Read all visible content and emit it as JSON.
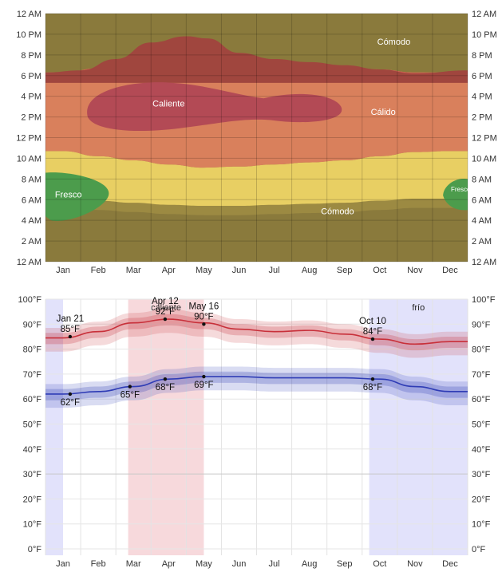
{
  "months": [
    "Jan",
    "Feb",
    "Mar",
    "Apr",
    "May",
    "Jun",
    "Jul",
    "Aug",
    "Sep",
    "Oct",
    "Nov",
    "Dec"
  ],
  "colors": {
    "comodo": "#8a7a3c",
    "calido": "#d9805c",
    "caliente": "#b34a55",
    "fresco": "#4c9c4c",
    "templado": "#e8cf63",
    "high": "#c8303a",
    "low": "#2f3cb5",
    "hot_season": "#f7d9dc",
    "cold_season": "#e2e2fb"
  },
  "chart_data": [
    {
      "type": "heatmap",
      "title": "",
      "y_tick_labels": [
        "12 AM",
        "2 AM",
        "4 AM",
        "6 AM",
        "8 AM",
        "10 AM",
        "12 PM",
        "2 PM",
        "4 PM",
        "6 PM",
        "8 PM",
        "10 PM",
        "12 AM"
      ],
      "x_tick_labels": [
        "Jan",
        "Feb",
        "Mar",
        "Apr",
        "May",
        "Jun",
        "Jul",
        "Aug",
        "Sep",
        "Oct",
        "Nov",
        "Dec"
      ],
      "bands": [
        {
          "name": "Cómodo",
          "color": "comodo"
        },
        {
          "name": "Cálido",
          "color": "calido"
        },
        {
          "name": "Caliente",
          "color": "caliente"
        },
        {
          "name": "Fresco",
          "color": "fresco"
        },
        {
          "name": "Cómodo",
          "color": "comodo"
        },
        {
          "name": "Fresco",
          "color": "fresco"
        }
      ],
      "boundaries_hours": {
        "month_x": [
          0.5,
          1.5,
          2.5,
          3.5,
          4.5,
          5.5,
          6.5,
          7.5,
          8.5,
          9.5,
          10.5,
          11.5
        ],
        "evening_top_of_hot": [
          18.3,
          18.7,
          19.6,
          20.5,
          20.2,
          19.4,
          19.1,
          18.9,
          18.8,
          18.6,
          18.3,
          18.3
        ],
        "warm_bottom": [
          10.7,
          10.2,
          9.8,
          9.4,
          9.1,
          9.2,
          9.4,
          9.6,
          9.8,
          10.2,
          10.6,
          10.7
        ],
        "mild_bottom": [
          5.2,
          5.0,
          4.8,
          4.6,
          4.5,
          4.5,
          4.6,
          4.7,
          4.8,
          5.0,
          5.2,
          5.2
        ]
      }
    },
    {
      "type": "line",
      "title": "",
      "x": [
        "Jan",
        "Feb",
        "Mar",
        "Apr",
        "May",
        "Jun",
        "Jul",
        "Aug",
        "Sep",
        "Oct",
        "Nov",
        "Dec"
      ],
      "y_tick_labels": [
        "0°F",
        "10°F",
        "20°F",
        "30°F",
        "40°F",
        "50°F",
        "60°F",
        "70°F",
        "80°F",
        "90°F",
        "100°F"
      ],
      "ylim": [
        0,
        100
      ],
      "season_labels": {
        "hot": "caliente",
        "cold": "frío"
      },
      "series": [
        {
          "key": "high",
          "values": [
            84.5,
            87,
            90.5,
            92,
            90.5,
            88,
            87,
            87.5,
            86,
            84,
            82,
            83
          ]
        },
        {
          "key": "low",
          "values": [
            62,
            63,
            65,
            68,
            69,
            69,
            68.5,
            68.5,
            68.5,
            68,
            65,
            63
          ]
        }
      ],
      "annotations": [
        {
          "date": "Jan 21",
          "value_label": "85°F",
          "month": 0.7,
          "value": 85
        },
        {
          "date": "Apr 12",
          "value_label": "92°F",
          "month": 3.4,
          "value": 92
        },
        {
          "date": "May 16",
          "value_label": "90°F",
          "month": 4.5,
          "value": 90
        },
        {
          "date": "Oct 10",
          "value_label": "84°F",
          "month": 9.3,
          "value": 84
        },
        {
          "date": "",
          "value_label": "62°F",
          "month": 0.7,
          "value": 62
        },
        {
          "date": "",
          "value_label": "65°F",
          "month": 2.4,
          "value": 65
        },
        {
          "date": "",
          "value_label": "68°F",
          "month": 3.4,
          "value": 68
        },
        {
          "date": "",
          "value_label": "69°F",
          "month": 4.5,
          "value": 69
        },
        {
          "date": "",
          "value_label": "68°F",
          "month": 9.3,
          "value": 68
        }
      ]
    }
  ]
}
